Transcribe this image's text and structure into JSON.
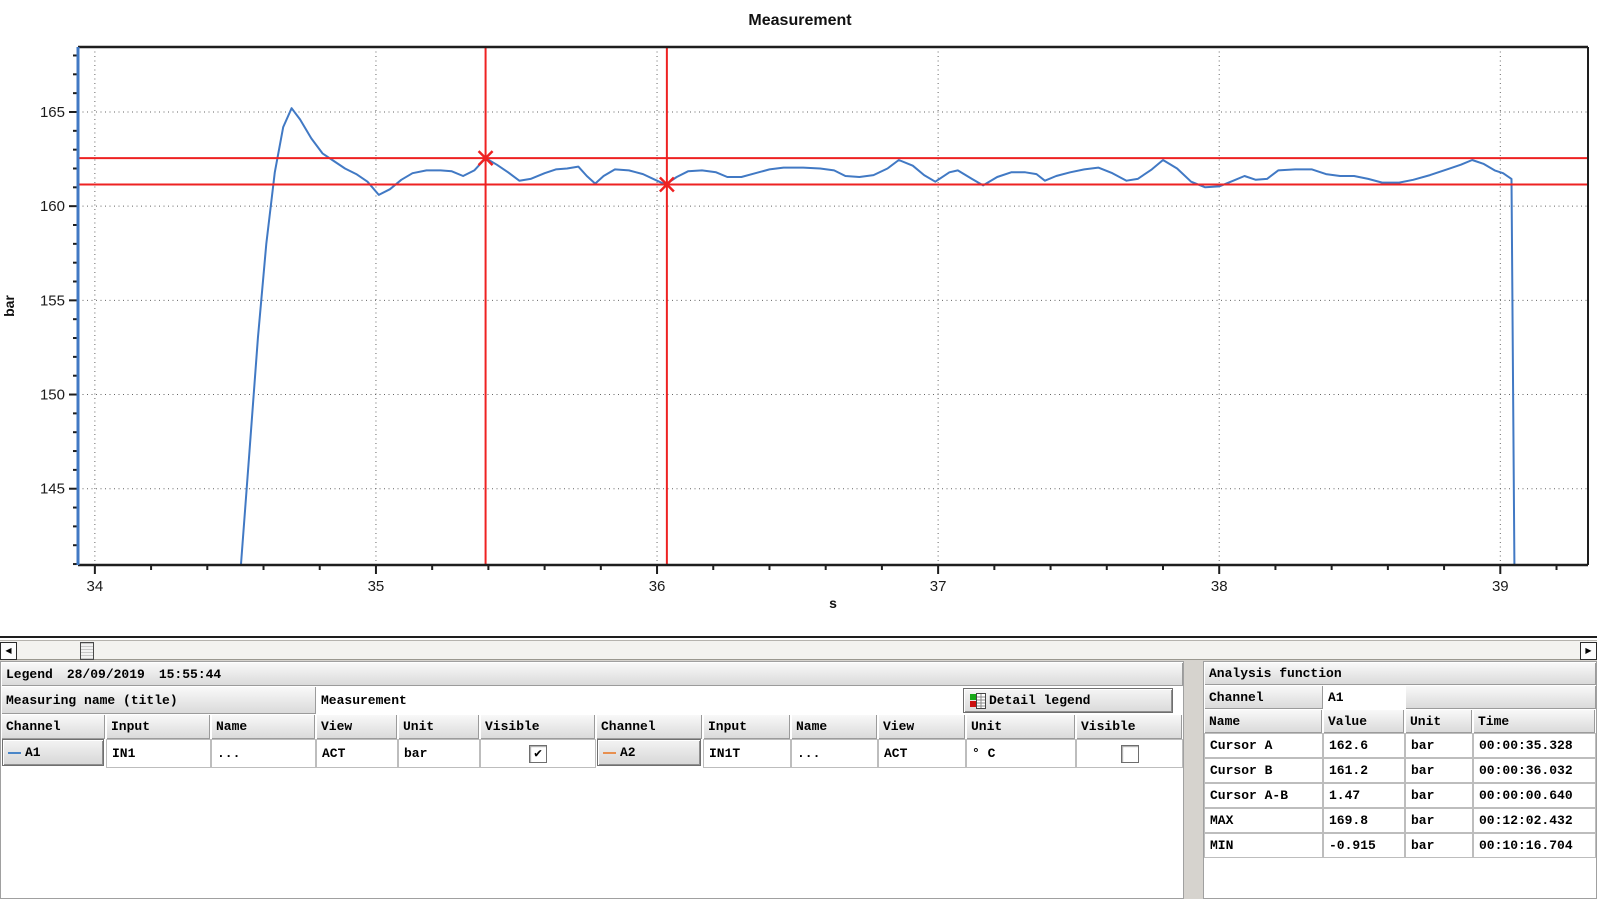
{
  "chart_data": {
    "type": "line",
    "title": "Measurement",
    "xlabel": "s",
    "ylabel": "bar",
    "xlim": [
      33.94,
      39.312
    ],
    "ylim": [
      140.95,
      168.45
    ],
    "x_ticks": [
      34,
      35,
      36,
      37,
      38,
      39
    ],
    "y_ticks": [
      145,
      150,
      155,
      160,
      165
    ],
    "x_minor_step": 0.2,
    "y_minor_step": 1,
    "grid": true,
    "grid_color": "#666666",
    "series": [
      {
        "name": "A1",
        "unit": "bar",
        "color": "#4179c4",
        "points": [
          [
            34.52,
            141.0
          ],
          [
            34.55,
            147.0
          ],
          [
            34.58,
            153.0
          ],
          [
            34.61,
            158.0
          ],
          [
            34.64,
            161.8
          ],
          [
            34.67,
            164.2
          ],
          [
            34.7,
            165.2
          ],
          [
            34.73,
            164.6
          ],
          [
            34.77,
            163.6
          ],
          [
            34.81,
            162.8
          ],
          [
            34.85,
            162.4
          ],
          [
            34.89,
            162.0
          ],
          [
            34.93,
            161.7
          ],
          [
            34.97,
            161.3
          ],
          [
            35.01,
            160.6
          ],
          [
            35.05,
            160.9
          ],
          [
            35.09,
            161.4
          ],
          [
            35.13,
            161.75
          ],
          [
            35.18,
            161.9
          ],
          [
            35.23,
            161.9
          ],
          [
            35.27,
            161.85
          ],
          [
            35.31,
            161.6
          ],
          [
            35.35,
            161.9
          ],
          [
            35.39,
            162.55
          ],
          [
            35.43,
            162.2
          ],
          [
            35.47,
            161.8
          ],
          [
            35.51,
            161.35
          ],
          [
            35.55,
            161.45
          ],
          [
            35.6,
            161.75
          ],
          [
            35.64,
            161.95
          ],
          [
            35.68,
            162.0
          ],
          [
            35.72,
            162.1
          ],
          [
            35.75,
            161.6
          ],
          [
            35.78,
            161.2
          ],
          [
            35.81,
            161.6
          ],
          [
            35.85,
            161.95
          ],
          [
            35.9,
            161.9
          ],
          [
            35.95,
            161.7
          ],
          [
            36.0,
            161.35
          ],
          [
            36.03,
            161.15
          ],
          [
            36.07,
            161.55
          ],
          [
            36.11,
            161.85
          ],
          [
            36.16,
            161.9
          ],
          [
            36.21,
            161.8
          ],
          [
            36.25,
            161.55
          ],
          [
            36.3,
            161.55
          ],
          [
            36.35,
            161.75
          ],
          [
            36.4,
            161.95
          ],
          [
            36.45,
            162.05
          ],
          [
            36.52,
            162.05
          ],
          [
            36.58,
            162.0
          ],
          [
            36.63,
            161.9
          ],
          [
            36.67,
            161.6
          ],
          [
            36.72,
            161.55
          ],
          [
            36.77,
            161.65
          ],
          [
            36.82,
            162.0
          ],
          [
            36.86,
            162.45
          ],
          [
            36.91,
            162.15
          ],
          [
            36.95,
            161.65
          ],
          [
            36.99,
            161.3
          ],
          [
            37.04,
            161.8
          ],
          [
            37.07,
            161.9
          ],
          [
            37.12,
            161.45
          ],
          [
            37.16,
            161.1
          ],
          [
            37.21,
            161.55
          ],
          [
            37.26,
            161.8
          ],
          [
            37.31,
            161.8
          ],
          [
            37.35,
            161.7
          ],
          [
            37.38,
            161.35
          ],
          [
            37.42,
            161.6
          ],
          [
            37.47,
            161.8
          ],
          [
            37.52,
            161.95
          ],
          [
            37.57,
            162.05
          ],
          [
            37.62,
            161.75
          ],
          [
            37.67,
            161.35
          ],
          [
            37.71,
            161.45
          ],
          [
            37.76,
            161.95
          ],
          [
            37.8,
            162.45
          ],
          [
            37.85,
            162.0
          ],
          [
            37.9,
            161.3
          ],
          [
            37.95,
            161.0
          ],
          [
            38.0,
            161.05
          ],
          [
            38.05,
            161.35
          ],
          [
            38.09,
            161.6
          ],
          [
            38.13,
            161.4
          ],
          [
            38.17,
            161.45
          ],
          [
            38.21,
            161.9
          ],
          [
            38.27,
            161.95
          ],
          [
            38.33,
            161.95
          ],
          [
            38.38,
            161.7
          ],
          [
            38.43,
            161.6
          ],
          [
            38.48,
            161.6
          ],
          [
            38.53,
            161.45
          ],
          [
            38.58,
            161.25
          ],
          [
            38.64,
            161.25
          ],
          [
            38.69,
            161.4
          ],
          [
            38.75,
            161.65
          ],
          [
            38.81,
            161.95
          ],
          [
            38.86,
            162.2
          ],
          [
            38.9,
            162.45
          ],
          [
            38.94,
            162.25
          ],
          [
            38.98,
            161.9
          ],
          [
            39.01,
            161.75
          ],
          [
            39.04,
            161.45
          ],
          [
            39.05,
            141.0
          ]
        ]
      }
    ],
    "cursors": {
      "color": "#ee2222",
      "a": {
        "x": 35.39,
        "y": 162.55
      },
      "b": {
        "x": 36.035,
        "y": 161.15
      }
    }
  },
  "scrollbar": {
    "left_icon": "◀",
    "right_icon": "▶"
  },
  "legend": {
    "bar_label": "Legend",
    "date": "28/09/2019",
    "time": "15:55:44",
    "measuring_name_label": "Measuring name (title)",
    "measuring_name_value": "Measurement",
    "detail_button_label": "Detail legend",
    "columns": [
      "Channel",
      "Input",
      "Name",
      "View",
      "Unit",
      "Visible"
    ],
    "channels": [
      {
        "channel": "A1",
        "color": "#4a86c8",
        "input": "IN1",
        "name": "...",
        "view": "ACT",
        "unit": "bar",
        "visible": true
      },
      {
        "channel": "A2",
        "color": "#e89050",
        "input": "IN1T",
        "name": "...",
        "view": "ACT",
        "unit": "° C",
        "visible": false
      }
    ],
    "check_glyph": "✔"
  },
  "analysis": {
    "title": "Analysis function",
    "channel_label": "Channel",
    "channel_value": "A1",
    "columns": [
      "Name",
      "Value",
      "Unit",
      "Time"
    ],
    "rows": [
      [
        "Cursor A",
        "162.6",
        "bar",
        "00:00:35.328"
      ],
      [
        "Cursor B",
        "161.2",
        "bar",
        "00:00:36.032"
      ],
      [
        "Cursor A-B",
        "1.47",
        "bar",
        "00:00:00.640"
      ],
      [
        "MAX",
        "169.8",
        "bar",
        "00:12:02.432"
      ],
      [
        "MIN",
        "-0.915",
        "bar",
        "00:10:16.704"
      ]
    ]
  }
}
